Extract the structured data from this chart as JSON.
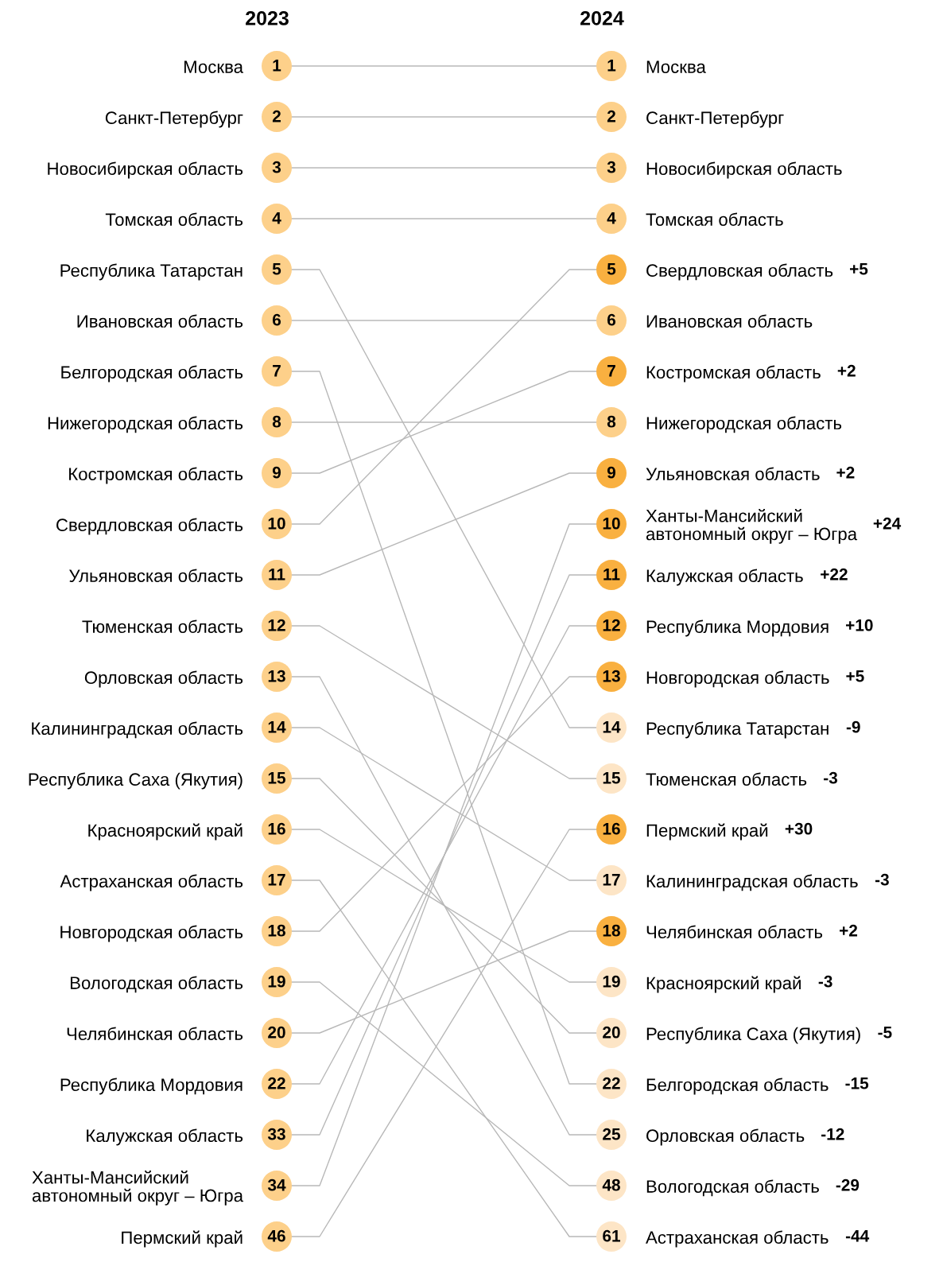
{
  "chart_data": {
    "type": "other",
    "categories": [
      "2023",
      "2024"
    ],
    "data_labels": true,
    "series": [
      {
        "name": "Москва",
        "values": [
          1,
          1
        ],
        "colors": [
          "#fdd08a",
          "#fdd08a"
        ]
      },
      {
        "name": "Санкт-Петербург",
        "values": [
          2,
          2
        ],
        "colors": [
          "#fdd08a",
          "#fdd08a"
        ]
      },
      {
        "name": "Новосибирская область",
        "values": [
          3,
          3
        ],
        "colors": [
          "#fdd08a",
          "#fdd08a"
        ]
      },
      {
        "name": "Томская область",
        "values": [
          4,
          4
        ],
        "colors": [
          "#fdd08a",
          "#fdd08a"
        ]
      },
      {
        "name": "Республика Татарстан",
        "values": [
          5,
          14
        ],
        "colors": [
          "#fdd08a",
          "#fde5c6"
        ]
      },
      {
        "name": "Ивановская область",
        "values": [
          6,
          6
        ],
        "colors": [
          "#fdd08a",
          "#fdd08a"
        ]
      },
      {
        "name": "Белгородская область",
        "values": [
          7,
          22
        ],
        "colors": [
          "#fdd08a",
          "#fde5c6"
        ]
      },
      {
        "name": "Нижегородская область",
        "values": [
          8,
          8
        ],
        "colors": [
          "#fdd08a",
          "#fdd08a"
        ]
      },
      {
        "name": "Костромская область",
        "values": [
          9,
          7
        ],
        "colors": [
          "#fdd08a",
          "#f9b040"
        ]
      },
      {
        "name": "Свердловская область",
        "values": [
          10,
          5
        ],
        "colors": [
          "#fdd08a",
          "#f9b040"
        ]
      },
      {
        "name": "Ульяновская область",
        "values": [
          11,
          9
        ],
        "colors": [
          "#fdd08a",
          "#f9b040"
        ]
      },
      {
        "name": "Тюменская область",
        "values": [
          12,
          15
        ],
        "colors": [
          "#fdd08a",
          "#fde5c6"
        ]
      },
      {
        "name": "Орловская область",
        "values": [
          13,
          25
        ],
        "colors": [
          "#fdd08a",
          "#fde5c6"
        ]
      },
      {
        "name": "Калининградская область",
        "values": [
          14,
          17
        ],
        "colors": [
          "#fdd08a",
          "#fde5c6"
        ]
      },
      {
        "name": "Республика Саха (Якутия)",
        "values": [
          15,
          20
        ],
        "colors": [
          "#fdd08a",
          "#fde5c6"
        ]
      },
      {
        "name": "Красноярский край",
        "values": [
          16,
          19
        ],
        "colors": [
          "#fdd08a",
          "#fde5c6"
        ]
      },
      {
        "name": "Астраханская область",
        "values": [
          17,
          61
        ],
        "colors": [
          "#fdd08a",
          "#fde5c6"
        ]
      },
      {
        "name": "Новгородская область",
        "values": [
          18,
          13
        ],
        "colors": [
          "#fdd08a",
          "#f9b040"
        ]
      },
      {
        "name": "Вологодская область",
        "values": [
          19,
          48
        ],
        "colors": [
          "#fdd08a",
          "#fde5c6"
        ]
      },
      {
        "name": "Челябинская область",
        "values": [
          20,
          18
        ],
        "colors": [
          "#fdd08a",
          "#f9b040"
        ]
      },
      {
        "name": "Республика Мордовия",
        "values": [
          22,
          12
        ],
        "colors": [
          "#fdd08a",
          "#f9b040"
        ]
      },
      {
        "name": "Калужская область",
        "values": [
          33,
          11
        ],
        "colors": [
          "#fdd08a",
          "#f9b040"
        ]
      },
      {
        "name": "Ханты-Мансийский\nавтономный округ – Югра",
        "values": [
          34,
          10
        ],
        "colors": [
          "#fdd08a",
          "#f9b040"
        ]
      },
      {
        "name": "Пермский край",
        "values": [
          46,
          16
        ],
        "colors": [
          "#fdd08a",
          "#f9b040"
        ]
      }
    ],
    "annotations": [
      "-9",
      "-15",
      "+2",
      "+5",
      "+2",
      "-3",
      "-12",
      "-3",
      "-5",
      "-3",
      "-44",
      "+5",
      "-29",
      "+2",
      "+10",
      "+22",
      "+24",
      "+30"
    ]
  }
}
